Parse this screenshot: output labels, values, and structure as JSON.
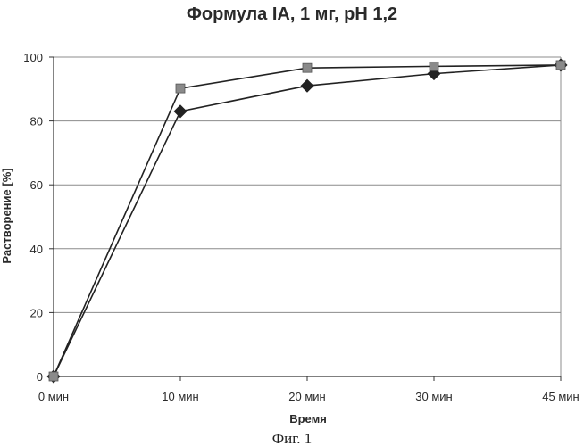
{
  "chart_data": {
    "type": "line",
    "title": "Формула IA, 1 мг, pH 1,2",
    "xlabel": "Время",
    "ylabel": "Растворение [%]",
    "categories": [
      "0 мин",
      "10 мин",
      "20 мин",
      "30 мин",
      "45 мин"
    ],
    "ylim": [
      0,
      100
    ],
    "yticks": [
      0,
      20,
      40,
      60,
      80,
      100
    ],
    "grid": true,
    "series": [
      {
        "values": [
          0,
          83,
          91,
          94.8,
          97.5
        ],
        "marker": "diamond",
        "color": "#222222"
      },
      {
        "values": [
          0,
          90.2,
          96.6,
          97.1,
          97.5
        ],
        "marker": "square",
        "color": "#8a8a8a"
      }
    ]
  },
  "figure_caption": "Фиг. 1"
}
